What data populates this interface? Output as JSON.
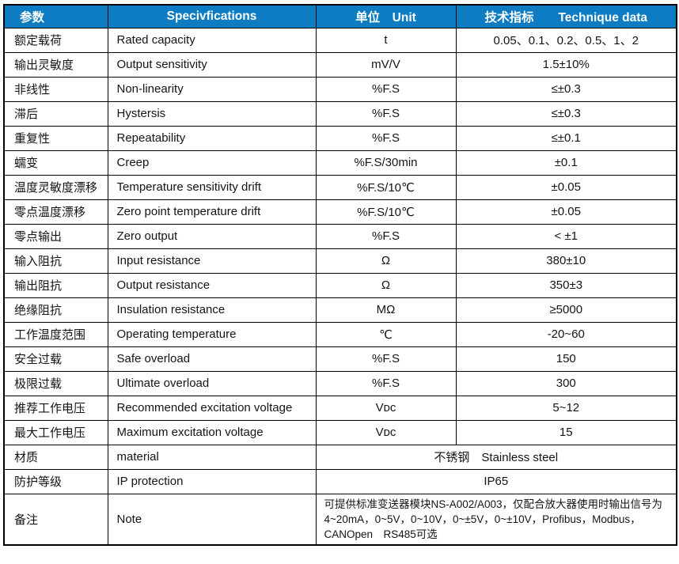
{
  "colors": {
    "header_bg": "#0d7cc2",
    "header_text": "#ffffff",
    "border": "#000000",
    "body_text": "#141414"
  },
  "header": {
    "col1": "参数",
    "col2": "Specivfications",
    "col3": "单位　Unit",
    "col4": "技术指标　　Technique data"
  },
  "rows": [
    {
      "param": "额定载荷",
      "spec": "Rated capacity",
      "unit": "t",
      "value": "0.05、0.1、0.2、0.5、1、2"
    },
    {
      "param": "输出灵敏度",
      "spec": "Output sensitivity",
      "unit": "mV/V",
      "value": "1.5±10%"
    },
    {
      "param": "非线性",
      "spec": "Non-linearity",
      "unit": "%F.S",
      "value": "≤±0.3"
    },
    {
      "param": "滞后",
      "spec": "Hystersis",
      "unit": "%F.S",
      "value": "≤±0.3"
    },
    {
      "param": "重复性",
      "spec": "Repeatability",
      "unit": "%F.S",
      "value": "≤±0.1"
    },
    {
      "param": "蠕变",
      "spec": "Creep",
      "unit": "%F.S/30min",
      "value": "±0.1"
    },
    {
      "param": "温度灵敏度漂移",
      "spec": "Temperature sensitivity drift",
      "unit": "%F.S/10℃",
      "value": "±0.05"
    },
    {
      "param": "零点温度漂移",
      "spec": "Zero point temperature drift",
      "unit": "%F.S/10℃",
      "value": "±0.05"
    },
    {
      "param": "零点输出",
      "spec": "Zero output",
      "unit": "%F.S",
      "value": "< ±1"
    },
    {
      "param": "输入阻抗",
      "spec": "Input resistance",
      "unit": "Ω",
      "value": "380±10"
    },
    {
      "param": "输出阻抗",
      "spec": "Output resistance",
      "unit": "Ω",
      "value": "350±3"
    },
    {
      "param": "绝缘阻抗",
      "spec": "Insulation resistance",
      "unit": "MΩ",
      "value": "≥5000"
    },
    {
      "param": "工作温度范围",
      "spec": "Operating temperature",
      "unit": "℃",
      "value": "-20~60"
    },
    {
      "param": "安全过载",
      "spec": "Safe overload",
      "unit": "%F.S",
      "value": "150"
    },
    {
      "param": "极限过载",
      "spec": "Ultimate overload",
      "unit": "%F.S",
      "value": "300"
    },
    {
      "param": "推荐工作电压",
      "spec": "Recommended excitation voltage",
      "unit": "Vᴅᴄ",
      "value": "5~12"
    },
    {
      "param": "最大工作电压",
      "spec": "Maximum excitation voltage",
      "unit": "Vᴅᴄ",
      "value": "15"
    },
    {
      "param": "材质",
      "spec": "material",
      "merged": true,
      "value": "不锈钢　Stainless steel"
    },
    {
      "param": "防护等级",
      "spec": "IP protection",
      "merged": true,
      "value": "IP65"
    },
    {
      "param": "备注",
      "spec": "Note",
      "merged": true,
      "align": "left",
      "tall": true,
      "value": "可提供标准变送器模块NS-A002/A003，仅配合放大器使用时输出信号为\n4~20mA，0~5V，0~10V，0~±5V，0~±10V，Profibus，Modbus，\nCANOpen　RS485可选"
    }
  ]
}
